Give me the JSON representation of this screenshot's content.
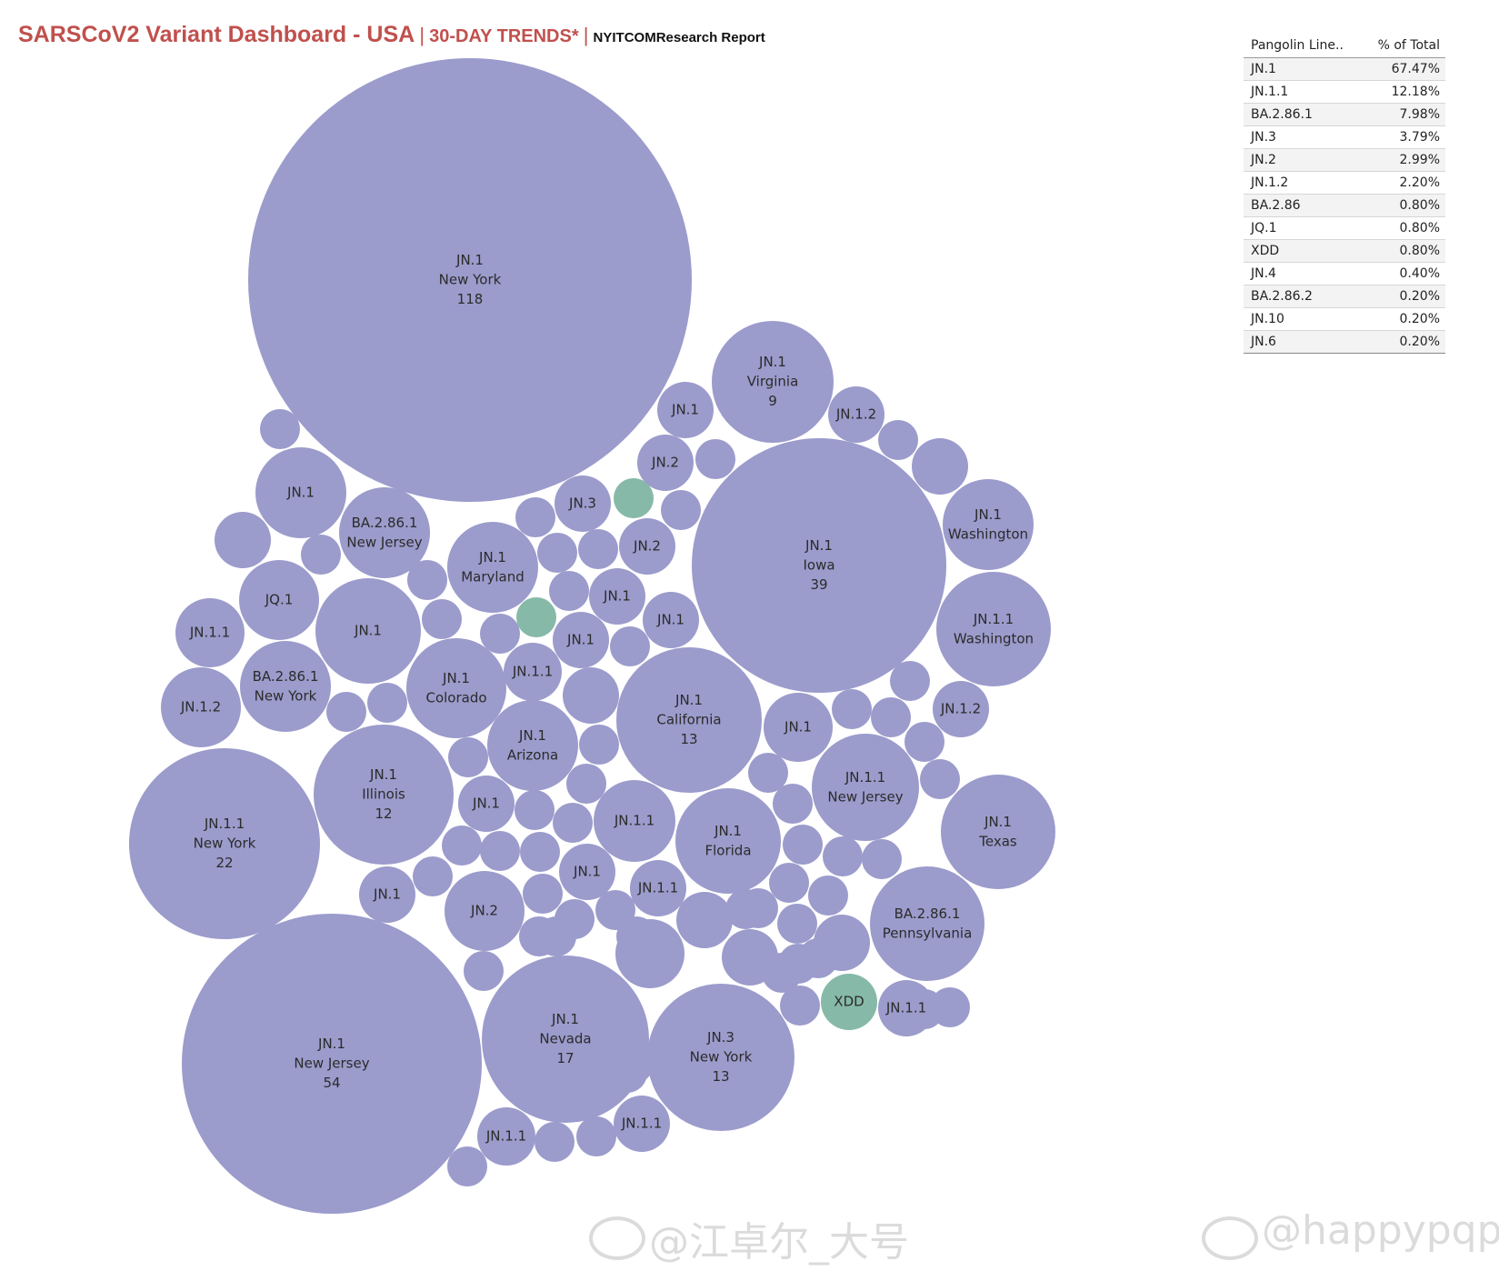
{
  "header": {
    "title": "SARSCoV2 Variant Dashboard - USA",
    "separator": "|",
    "subtitle": "30-DAY TRENDS*",
    "source": "NYITCOMResearch Report"
  },
  "colors": {
    "title": "#c0504d",
    "bubble_default": "#9b9bcc",
    "bubble_xdd": "#86b9a8",
    "bubble_text": "#2b2b2b"
  },
  "summary_table": {
    "col_lineage": "Pangolin Line..",
    "col_pct": "% of Total",
    "rows": [
      {
        "lineage": "JN.1",
        "pct": "67.47%"
      },
      {
        "lineage": "JN.1.1",
        "pct": "12.18%"
      },
      {
        "lineage": "BA.2.86.1",
        "pct": "7.98%"
      },
      {
        "lineage": "JN.3",
        "pct": "3.79%"
      },
      {
        "lineage": "JN.2",
        "pct": "2.99%"
      },
      {
        "lineage": "JN.1.2",
        "pct": "2.20%"
      },
      {
        "lineage": "BA.2.86",
        "pct": "0.80%"
      },
      {
        "lineage": "JQ.1",
        "pct": "0.80%"
      },
      {
        "lineage": "XDD",
        "pct": "0.80%"
      },
      {
        "lineage": "JN.4",
        "pct": "0.40%"
      },
      {
        "lineage": "BA.2.86.2",
        "pct": "0.20%"
      },
      {
        "lineage": "JN.10",
        "pct": "0.20%"
      },
      {
        "lineage": "JN.6",
        "pct": "0.20%"
      }
    ]
  },
  "chart_data": {
    "type": "packed-bubble",
    "bubbles": [
      {
        "lineage": "JN.1",
        "state": "New York",
        "count": 118
      },
      {
        "lineage": "JN.1",
        "state": "New Jersey",
        "count": 54
      },
      {
        "lineage": "JN.1",
        "state": "Iowa",
        "count": 39
      },
      {
        "lineage": "JN.1.1",
        "state": "New York",
        "count": 22
      },
      {
        "lineage": "JN.1",
        "state": "Nevada",
        "count": 17
      },
      {
        "lineage": "JN.1",
        "state": "California",
        "count": 13
      },
      {
        "lineage": "JN.3",
        "state": "New York",
        "count": 13
      },
      {
        "lineage": "JN.1",
        "state": "Illinois",
        "count": 12
      },
      {
        "lineage": "JN.1",
        "state": "Virginia",
        "count": 9
      },
      {
        "lineage": "JN.1",
        "state": "Washington"
      },
      {
        "lineage": "JN.1.1",
        "state": "Washington"
      },
      {
        "lineage": "JN.1",
        "state": "Texas"
      },
      {
        "lineage": "BA.2.86.1",
        "state": "Pennsylvania"
      },
      {
        "lineage": "JN.1.1",
        "state": "New Jersey"
      },
      {
        "lineage": "JN.1",
        "state": "Florida"
      },
      {
        "lineage": "JN.1",
        "state": "Arizona"
      },
      {
        "lineage": "JN.1",
        "state": "Colorado"
      },
      {
        "lineage": "JN.1",
        "state": "Maryland"
      },
      {
        "lineage": "BA.2.86.1",
        "state": "New Jersey"
      },
      {
        "lineage": "BA.2.86.1",
        "state": "New York"
      },
      {
        "lineage": "JN.1"
      },
      {
        "lineage": "JN.1"
      },
      {
        "lineage": "JN.1"
      },
      {
        "lineage": "JN.1"
      },
      {
        "lineage": "JN.1"
      },
      {
        "lineage": "JN.1"
      },
      {
        "lineage": "JN.1"
      },
      {
        "lineage": "JN.1"
      },
      {
        "lineage": "JN.1"
      },
      {
        "lineage": "JN.1"
      },
      {
        "lineage": "JN.1.1"
      },
      {
        "lineage": "JN.1.1"
      },
      {
        "lineage": "JN.1.1"
      },
      {
        "lineage": "JN.1.1"
      },
      {
        "lineage": "JN.1.1"
      },
      {
        "lineage": "JN.1.1"
      },
      {
        "lineage": "JN.1.1"
      },
      {
        "lineage": "JN.1.2"
      },
      {
        "lineage": "JN.1.2"
      },
      {
        "lineage": "JN.1.2"
      },
      {
        "lineage": "JN.2"
      },
      {
        "lineage": "JN.2"
      },
      {
        "lineage": "JN.2"
      },
      {
        "lineage": "JN.3"
      },
      {
        "lineage": "JQ.1"
      },
      {
        "lineage": "XDD"
      }
    ],
    "unlabeled_bubbles": {
      "default": 64,
      "xdd": 2
    }
  },
  "watermarks": {
    "left": "@江卓尔_大号",
    "right": "@happypqp"
  }
}
